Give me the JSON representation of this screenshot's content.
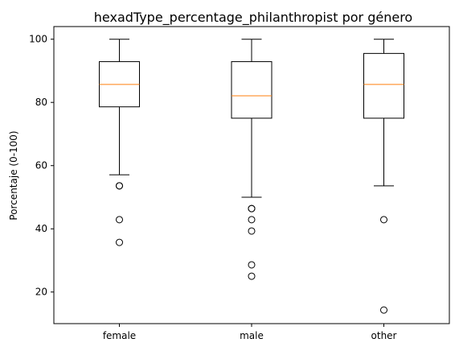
{
  "chart_data": {
    "type": "boxplot",
    "title": "hexadType_percentage_philanthropist por género",
    "xlabel": "",
    "ylabel": "Porcentaje (0-100)",
    "ylim": [
      10.0,
      104.0
    ],
    "yticks": [
      20,
      40,
      60,
      80,
      100
    ],
    "grid": false,
    "categories": [
      "female",
      "male",
      "other"
    ],
    "boxes": [
      {
        "category": "female",
        "whisker_low": 57.1,
        "q1": 78.6,
        "median": 85.7,
        "q3": 92.9,
        "whisker_high": 100.0,
        "outliers": [
          53.6,
          53.6,
          42.9,
          35.7
        ]
      },
      {
        "category": "male",
        "whisker_low": 50.0,
        "q1": 75.0,
        "median": 82.1,
        "q3": 92.9,
        "whisker_high": 100.0,
        "outliers": [
          46.4,
          46.4,
          42.9,
          39.3,
          28.6,
          25.0
        ]
      },
      {
        "category": "other",
        "whisker_low": 53.6,
        "q1": 75.0,
        "median": 85.7,
        "q3": 95.5,
        "whisker_high": 100.0,
        "outliers": [
          42.9,
          14.3
        ]
      }
    ],
    "colors": {
      "box": "#000000",
      "median": "#ff7f0e",
      "outlier": "#000000"
    }
  }
}
